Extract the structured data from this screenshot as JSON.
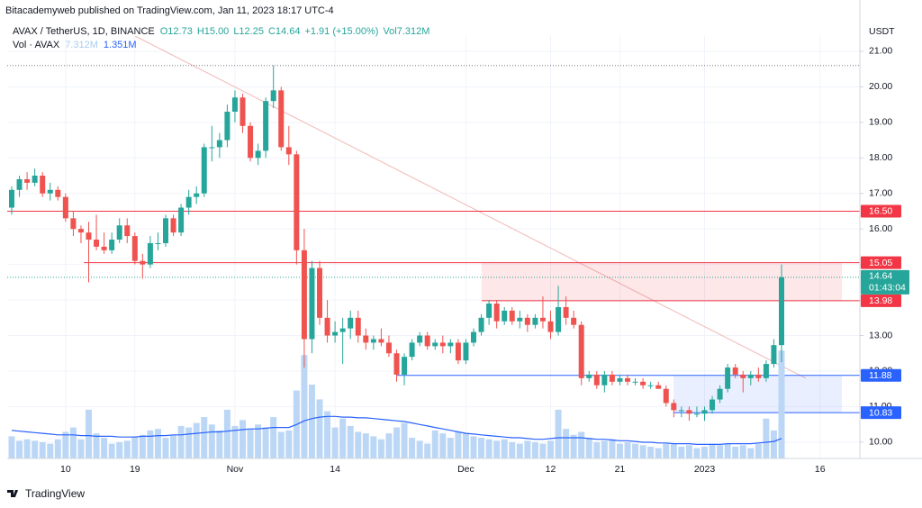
{
  "publisher_line": "Bitacademyweb published on TradingView.com, Jan 11, 2023 18:17 UTC-4",
  "footer": "TradingView",
  "chart_data": {
    "type": "candlestick",
    "title": "AVAX / TetherUS, 1D, BINANCE",
    "ohlc_legend": [
      "O12.73",
      "H15.00",
      "L12.25",
      "C14.64",
      "+1.91 (+15.00%)",
      "Vol7.312M"
    ],
    "volume_legend": [
      "Vol · AVAX",
      "7.312M",
      "1.351M"
    ],
    "y_axis_label": "USDT",
    "up_color": "#26a69a",
    "down_color": "#ef5350",
    "volume_color": "#bcd7f5",
    "volume_ma_color": "#2962ff",
    "grid": true,
    "categories": [
      null,
      null,
      null,
      null,
      null,
      null,
      null,
      "10",
      null,
      null,
      null,
      null,
      null,
      null,
      null,
      null,
      "19",
      null,
      null,
      null,
      null,
      null,
      null,
      null,
      null,
      null,
      null,
      null,
      null,
      "Nov",
      null,
      null,
      null,
      null,
      null,
      null,
      null,
      null,
      null,
      null,
      null,
      null,
      "14",
      null,
      null,
      null,
      null,
      null,
      null,
      null,
      null,
      null,
      null,
      null,
      null,
      null,
      null,
      null,
      null,
      "Dec",
      null,
      null,
      null,
      null,
      null,
      null,
      null,
      null,
      null,
      null,
      "12",
      null,
      null,
      null,
      null,
      null,
      null,
      null,
      null,
      "21",
      null,
      null,
      null,
      null,
      null,
      null,
      null,
      null,
      null,
      null,
      "2023",
      null,
      null,
      null,
      null,
      null,
      null,
      null,
      null,
      null,
      null,
      null,
      null,
      null,
      null,
      "16"
    ],
    "open": [
      16.6,
      17.1,
      17.4,
      17.3,
      17.5,
      17.0,
      17.1,
      16.9,
      16.3,
      16.0,
      15.9,
      15.7,
      15.5,
      15.4,
      15.7,
      16.1,
      15.8,
      15.1,
      15.0,
      15.6,
      15.6,
      16.3,
      15.9,
      16.6,
      16.9,
      17.0,
      18.3,
      18.3,
      18.5,
      19.3,
      19.7,
      18.9,
      18.0,
      18.2,
      19.6,
      19.9,
      18.3,
      18.1,
      15.4,
      12.9,
      14.9,
      13.5,
      13.0,
      13.1,
      13.2,
      13.5,
      13.0,
      12.8,
      12.9,
      12.8,
      12.5,
      11.9,
      12.4,
      12.8,
      13.0,
      12.7,
      12.8,
      12.7,
      12.8,
      12.3,
      12.8,
      13.1,
      13.5,
      13.9,
      13.4,
      13.7,
      13.4,
      13.5,
      13.3,
      13.5,
      13.4,
      13.1,
      13.8,
      13.5,
      13.3,
      11.8,
      11.9,
      11.6,
      11.9,
      11.7,
      11.8,
      11.7,
      11.7,
      11.6,
      11.6,
      11.5,
      11.1,
      10.9,
      10.9,
      10.8,
      10.8,
      10.9,
      11.2,
      11.5,
      12.1,
      11.9,
      11.8,
      11.9,
      11.8,
      12.2,
      12.73,
      null,
      null,
      null,
      null,
      null
    ],
    "high": [
      17.2,
      17.5,
      17.6,
      17.7,
      17.6,
      17.3,
      17.2,
      17.0,
      16.5,
      16.1,
      16.2,
      16.4,
      15.9,
      15.9,
      16.3,
      16.3,
      15.9,
      15.3,
      15.8,
      15.9,
      16.4,
      16.4,
      16.7,
      17.1,
      17.2,
      18.4,
      18.9,
      18.7,
      19.5,
      19.9,
      19.8,
      19.0,
      18.4,
      19.7,
      20.6,
      20.0,
      18.9,
      18.2,
      16.0,
      15.1,
      15.1,
      14.0,
      13.4,
      13.5,
      13.7,
      13.7,
      13.2,
      13.0,
      13.2,
      13.0,
      12.6,
      12.5,
      12.9,
      13.1,
      13.1,
      12.9,
      13.0,
      12.9,
      12.9,
      12.9,
      13.2,
      13.6,
      14.0,
      14.0,
      13.8,
      13.8,
      13.7,
      13.6,
      13.6,
      14.1,
      13.7,
      14.4,
      14.1,
      13.7,
      13.4,
      12.0,
      12.0,
      12.0,
      12.0,
      11.9,
      11.9,
      11.8,
      11.8,
      11.7,
      11.7,
      11.6,
      11.2,
      11.0,
      11.0,
      11.0,
      11.0,
      11.3,
      11.6,
      12.2,
      12.2,
      12.0,
      12.0,
      12.1,
      12.3,
      12.9,
      15.0,
      null,
      null,
      null,
      null,
      null
    ],
    "low": [
      16.4,
      16.9,
      17.1,
      17.2,
      16.9,
      16.8,
      16.8,
      16.2,
      15.8,
      15.6,
      14.5,
      15.4,
      15.3,
      15.3,
      15.6,
      15.6,
      15.0,
      14.6,
      14.9,
      15.4,
      15.5,
      15.8,
      15.8,
      16.4,
      16.7,
      16.9,
      17.9,
      18.0,
      18.3,
      19.0,
      18.7,
      17.9,
      17.8,
      18.0,
      19.4,
      18.2,
      17.8,
      15.0,
      12.1,
      12.5,
      13.3,
      12.8,
      12.8,
      12.2,
      12.9,
      12.8,
      12.6,
      12.6,
      12.7,
      12.4,
      11.7,
      11.6,
      12.3,
      12.7,
      12.6,
      12.6,
      12.5,
      12.5,
      12.2,
      12.2,
      12.7,
      13.0,
      13.3,
      13.2,
      13.3,
      13.3,
      13.2,
      13.1,
      13.2,
      13.2,
      12.9,
      13.0,
      13.3,
      13.2,
      11.6,
      11.7,
      11.5,
      11.4,
      11.6,
      11.6,
      11.6,
      11.6,
      11.5,
      11.5,
      11.5,
      11.0,
      10.7,
      10.7,
      10.6,
      10.7,
      10.6,
      10.8,
      11.1,
      11.4,
      11.8,
      11.4,
      11.6,
      11.7,
      11.7,
      12.1,
      12.25,
      null,
      null,
      null,
      null,
      null
    ],
    "close": [
      17.1,
      17.4,
      17.3,
      17.5,
      17.0,
      17.1,
      16.9,
      16.3,
      16.0,
      15.9,
      15.7,
      15.5,
      15.4,
      15.7,
      16.1,
      15.8,
      15.1,
      15.0,
      15.6,
      15.6,
      16.3,
      15.9,
      16.6,
      16.9,
      17.0,
      18.3,
      18.3,
      18.5,
      19.3,
      19.7,
      18.9,
      18.0,
      18.2,
      19.6,
      19.9,
      18.3,
      18.1,
      15.4,
      12.9,
      14.9,
      13.5,
      13.0,
      13.1,
      13.2,
      13.5,
      13.0,
      12.8,
      12.9,
      12.8,
      12.5,
      11.9,
      12.4,
      12.8,
      13.0,
      12.7,
      12.8,
      12.7,
      12.8,
      12.3,
      12.8,
      13.1,
      13.5,
      13.9,
      13.4,
      13.7,
      13.4,
      13.5,
      13.3,
      13.5,
      13.4,
      13.1,
      13.8,
      13.5,
      13.3,
      11.8,
      11.9,
      11.6,
      11.9,
      11.7,
      11.8,
      11.7,
      11.7,
      11.6,
      11.6,
      11.5,
      11.1,
      10.9,
      10.9,
      10.8,
      10.8,
      10.9,
      11.2,
      11.5,
      12.1,
      11.9,
      11.8,
      11.9,
      11.8,
      12.2,
      12.73,
      14.64,
      null,
      null,
      null,
      null,
      null
    ],
    "volume": [
      1.5,
      1.2,
      1.3,
      1.2,
      1.1,
      1.0,
      1.3,
      1.8,
      2.1,
      1.3,
      3.3,
      1.7,
      1.4,
      1.0,
      1.1,
      1.2,
      1.5,
      1.6,
      1.9,
      2.0,
      1.4,
      1.6,
      2.2,
      2.1,
      2.4,
      2.8,
      2.3,
      1.9,
      3.3,
      2.2,
      2.6,
      2.0,
      2.3,
      2.1,
      2.8,
      1.8,
      1.9,
      4.6,
      7.0,
      5.0,
      4.0,
      3.2,
      2.1,
      2.7,
      2.2,
      1.8,
      1.7,
      1.5,
      1.3,
      1.7,
      2.1,
      2.4,
      1.4,
      1.2,
      1.0,
      1.9,
      1.7,
      1.4,
      1.8,
      1.7,
      1.5,
      1.4,
      1.3,
      1.2,
      1.3,
      1.1,
      1.0,
      1.2,
      1.1,
      1.0,
      1.2,
      3.3,
      2.0,
      1.6,
      1.8,
      1.4,
      1.1,
      1.2,
      1.3,
      1.0,
      1.1,
      1.0,
      0.9,
      0.8,
      0.7,
      1.0,
      1.0,
      0.8,
      0.9,
      0.7,
      0.8,
      1.0,
      0.9,
      1.0,
      0.8,
      0.9,
      0.7,
      1.0,
      2.7,
      1.9,
      7.312,
      null,
      null,
      null,
      null,
      null
    ],
    "volume_ma": [
      1.9,
      1.85,
      1.8,
      1.75,
      1.7,
      1.65,
      1.6,
      1.6,
      1.6,
      1.55,
      1.55,
      1.5,
      1.5,
      1.5,
      1.45,
      1.45,
      1.45,
      1.5,
      1.5,
      1.55,
      1.55,
      1.6,
      1.6,
      1.65,
      1.7,
      1.75,
      1.8,
      1.8,
      1.85,
      1.9,
      1.95,
      2.0,
      2.0,
      2.05,
      2.1,
      2.1,
      2.1,
      2.3,
      2.55,
      2.7,
      2.8,
      2.85,
      2.85,
      2.8,
      2.8,
      2.75,
      2.75,
      2.7,
      2.65,
      2.6,
      2.55,
      2.5,
      2.4,
      2.3,
      2.2,
      2.1,
      2.0,
      1.9,
      1.8,
      1.7,
      1.65,
      1.6,
      1.55,
      1.5,
      1.45,
      1.4,
      1.4,
      1.35,
      1.3,
      1.3,
      1.35,
      1.4,
      1.4,
      1.4,
      1.4,
      1.35,
      1.3,
      1.3,
      1.25,
      1.2,
      1.2,
      1.15,
      1.1,
      1.1,
      1.05,
      1.05,
      1.0,
      1.0,
      1.0,
      0.95,
      0.95,
      0.95,
      0.95,
      1.0,
      1.0,
      1.0,
      1.0,
      1.05,
      1.1,
      1.15,
      1.351,
      null,
      null,
      null,
      null,
      null
    ],
    "ylim": [
      9.54,
      21.43
    ],
    "yticks": [
      {
        "value": 10,
        "label": "10.00"
      },
      {
        "value": 11,
        "label": "11.00"
      },
      {
        "value": 12,
        "label": "12.00"
      },
      {
        "value": 13,
        "label": "13.00"
      },
      {
        "value": 14,
        "label": "14.00"
      },
      {
        "value": 15,
        "label": "15.00"
      },
      {
        "value": 16,
        "label": "16.00"
      },
      {
        "value": 17,
        "label": "17.00"
      },
      {
        "value": 18,
        "label": "18.00"
      },
      {
        "value": 19,
        "label": "19.00"
      },
      {
        "value": 20,
        "label": "20.00"
      },
      {
        "value": 21,
        "label": "21.00"
      }
    ],
    "levels": [
      {
        "value": 16.5,
        "label": "16.50",
        "color": "#f23645"
      },
      {
        "value": 15.05,
        "label": "15.05",
        "color": "#f23645"
      },
      {
        "value": 13.98,
        "label": "13.98",
        "color": "#f23645"
      },
      {
        "value": 11.88,
        "label": "11.88",
        "color": "#2962ff"
      },
      {
        "value": 10.83,
        "label": "10.83",
        "color": "#2962ff"
      }
    ],
    "last_price": {
      "value": 14.64,
      "label": "14.64"
    },
    "countdown": "01:43:04"
  }
}
